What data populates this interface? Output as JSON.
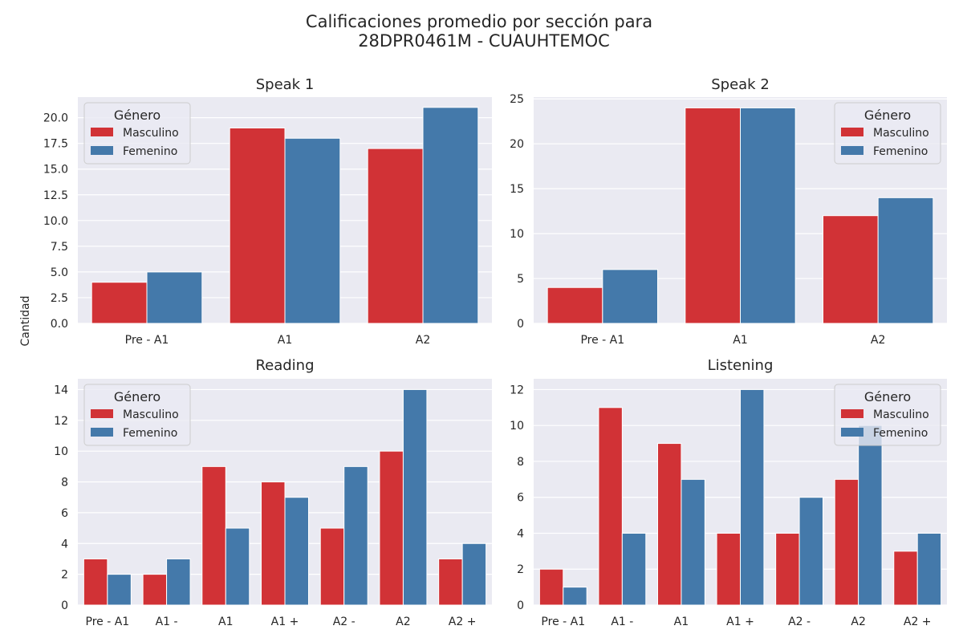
{
  "figure": {
    "suptitle_line1": "Calificaciones promedio por sección para",
    "suptitle_line2": "28DPR0461M - CUAUHTEMOC",
    "shared_ylabel": "Cantidad"
  },
  "colors": {
    "background": "#ffffff",
    "plot_background": "#eaeaf2",
    "grid": "#ffffff",
    "masculino": "#d13236",
    "femenino": "#4479aa"
  },
  "chart_data": [
    {
      "type": "bar",
      "title": "Speak 1",
      "categories": [
        "Pre - A1",
        "A1",
        "A2"
      ],
      "series": [
        {
          "name": "Masculino",
          "values": [
            4,
            19,
            17
          ]
        },
        {
          "name": "Femenino",
          "values": [
            5,
            18,
            21
          ]
        }
      ],
      "ylim": [
        0,
        22
      ],
      "yticks": [
        "0.0",
        "2.5",
        "5.0",
        "7.5",
        "10.0",
        "12.5",
        "15.0",
        "17.5",
        "20.0"
      ],
      "grid": true,
      "legend": {
        "title": "Género",
        "placement": "upper-left"
      }
    },
    {
      "type": "bar",
      "title": "Speak 2",
      "categories": [
        "Pre - A1",
        "A1",
        "A2"
      ],
      "series": [
        {
          "name": "Masculino",
          "values": [
            4,
            24,
            12
          ]
        },
        {
          "name": "Femenino",
          "values": [
            6,
            24,
            14
          ]
        }
      ],
      "ylim": [
        0,
        25.2
      ],
      "yticks": [
        "0",
        "5",
        "10",
        "15",
        "20",
        "25"
      ],
      "grid": true,
      "legend": {
        "title": "Género",
        "placement": "upper-right"
      }
    },
    {
      "type": "bar",
      "title": "Reading",
      "categories": [
        "Pre - A1",
        "A1 -",
        "A1",
        "A1 +",
        "A2 -",
        "A2",
        "A2 +"
      ],
      "series": [
        {
          "name": "Masculino",
          "values": [
            3,
            2,
            9,
            8,
            5,
            10,
            3
          ]
        },
        {
          "name": "Femenino",
          "values": [
            2,
            3,
            5,
            7,
            9,
            14,
            4
          ]
        }
      ],
      "ylim": [
        0,
        14.7
      ],
      "yticks": [
        "0",
        "2",
        "4",
        "6",
        "8",
        "10",
        "12",
        "14"
      ],
      "grid": true,
      "legend": {
        "title": "Género",
        "placement": "upper-left"
      }
    },
    {
      "type": "bar",
      "title": "Listening",
      "categories": [
        "Pre - A1",
        "A1 -",
        "A1",
        "A1 +",
        "A2 -",
        "A2",
        "A2 +"
      ],
      "series": [
        {
          "name": "Masculino",
          "values": [
            2,
            11,
            9,
            4,
            4,
            7,
            3
          ]
        },
        {
          "name": "Femenino",
          "values": [
            1,
            4,
            7,
            12,
            6,
            10,
            4
          ]
        }
      ],
      "ylim": [
        0,
        12.6
      ],
      "yticks": [
        "0",
        "2",
        "4",
        "6",
        "8",
        "10",
        "12"
      ],
      "grid": true,
      "legend": {
        "title": "Género",
        "placement": "upper-right"
      }
    }
  ]
}
